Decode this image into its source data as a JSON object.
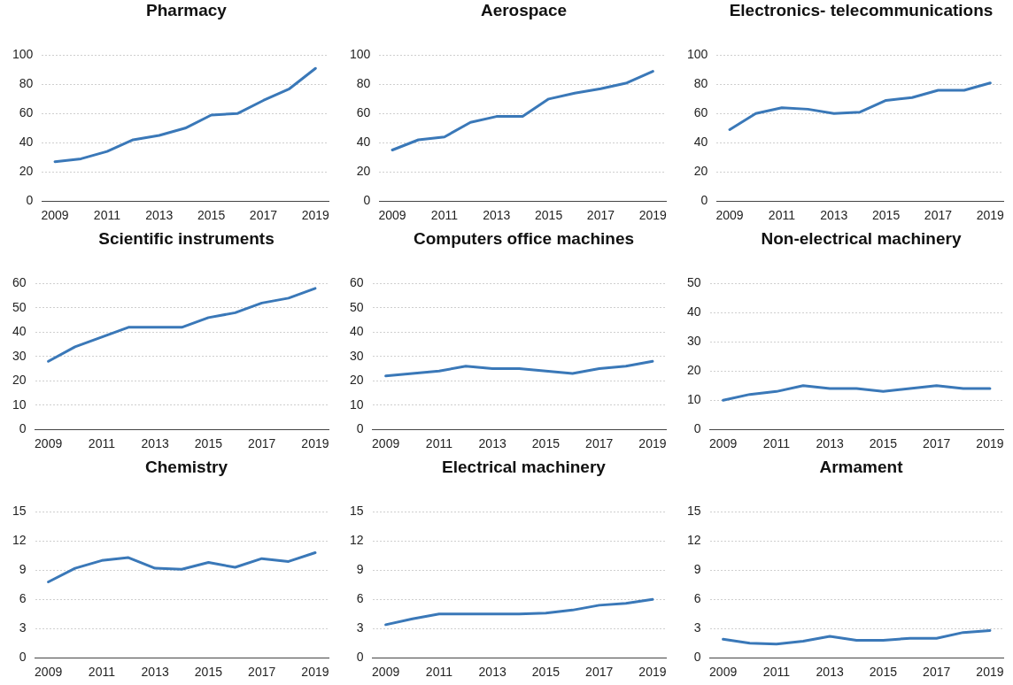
{
  "chart_data": [
    {
      "type": "line",
      "title": "Pharmacy",
      "categories": [
        "2009",
        null,
        "2011",
        null,
        "2013",
        null,
        "2015",
        null,
        "2017",
        null,
        "2019"
      ],
      "series": [
        {
          "color": "#3a78b8",
          "values": [
            27,
            29,
            34,
            42,
            45,
            50,
            59,
            60,
            69,
            77,
            91
          ]
        }
      ],
      "ylim": [
        0,
        100
      ],
      "yticks": [
        0,
        20,
        40,
        60,
        80,
        100
      ],
      "grid": "y"
    },
    {
      "type": "line",
      "title": "Aerospace",
      "categories": [
        "2009",
        null,
        "2011",
        null,
        "2013",
        null,
        "2015",
        null,
        "2017",
        null,
        "2019"
      ],
      "series": [
        {
          "color": "#3a78b8",
          "values": [
            35,
            42,
            44,
            54,
            58,
            58,
            70,
            74,
            77,
            81,
            89
          ]
        }
      ],
      "ylim": [
        0,
        100
      ],
      "yticks": [
        0,
        20,
        40,
        60,
        80,
        100
      ],
      "grid": "y"
    },
    {
      "type": "line",
      "title": "Electronics- telecommunications",
      "categories": [
        "2009",
        null,
        "2011",
        null,
        "2013",
        null,
        "2015",
        null,
        "2017",
        null,
        "2019"
      ],
      "series": [
        {
          "color": "#3a78b8",
          "values": [
            49,
            60,
            64,
            63,
            60,
            61,
            69,
            71,
            76,
            76,
            81
          ]
        }
      ],
      "ylim": [
        0,
        100
      ],
      "yticks": [
        0,
        20,
        40,
        60,
        80,
        100
      ],
      "grid": "y"
    },
    {
      "type": "line",
      "title": "Scientific instruments",
      "categories": [
        "2009",
        null,
        "2011",
        null,
        "2013",
        null,
        "2015",
        null,
        "2017",
        null,
        "2019"
      ],
      "series": [
        {
          "color": "#3a78b8",
          "values": [
            28,
            34,
            38,
            42,
            42,
            42,
            46,
            48,
            52,
            54,
            58
          ]
        }
      ],
      "ylim": [
        0,
        60
      ],
      "yticks": [
        0,
        10,
        20,
        30,
        40,
        50,
        60
      ],
      "grid": "y"
    },
    {
      "type": "line",
      "title": "Computers office machines",
      "categories": [
        "2009",
        null,
        "2011",
        null,
        "2013",
        null,
        "2015",
        null,
        "2017",
        null,
        "2019"
      ],
      "series": [
        {
          "color": "#3a78b8",
          "values": [
            22,
            23,
            24,
            26,
            25,
            25,
            24,
            23,
            25,
            26,
            28
          ]
        }
      ],
      "ylim": [
        0,
        60
      ],
      "yticks": [
        0,
        10,
        20,
        30,
        40,
        50,
        60
      ],
      "grid": "y"
    },
    {
      "type": "line",
      "title": "Non-electrical machinery",
      "categories": [
        "2009",
        null,
        "2011",
        null,
        "2013",
        null,
        "2015",
        null,
        "2017",
        null,
        "2019"
      ],
      "series": [
        {
          "color": "#3a78b8",
          "values": [
            10,
            12,
            13,
            15,
            14,
            14,
            13,
            14,
            15,
            14,
            14
          ]
        }
      ],
      "ylim": [
        0,
        50
      ],
      "yticks": [
        0,
        10,
        20,
        30,
        40,
        50
      ],
      "grid": "y"
    },
    {
      "type": "line",
      "title": "Chemistry",
      "categories": [
        "2009",
        null,
        "2011",
        null,
        "2013",
        null,
        "2015",
        null,
        "2017",
        null,
        "2019"
      ],
      "series": [
        {
          "color": "#3a78b8",
          "values": [
            7.8,
            9.2,
            10,
            10.3,
            9.2,
            9.1,
            9.8,
            9.3,
            10.2,
            9.9,
            10.8
          ]
        }
      ],
      "ylim": [
        0,
        15
      ],
      "yticks": [
        0,
        3,
        6,
        9,
        12,
        15
      ],
      "grid": "y"
    },
    {
      "type": "line",
      "title": "Electrical machinery",
      "categories": [
        "2009",
        null,
        "2011",
        null,
        "2013",
        null,
        "2015",
        null,
        "2017",
        null,
        "2019"
      ],
      "series": [
        {
          "color": "#3a78b8",
          "values": [
            3.4,
            4,
            4.5,
            4.5,
            4.5,
            4.5,
            4.6,
            4.9,
            5.4,
            5.6,
            6
          ]
        }
      ],
      "ylim": [
        0,
        15
      ],
      "yticks": [
        0,
        3,
        6,
        9,
        12,
        15
      ],
      "grid": "y"
    },
    {
      "type": "line",
      "title": "Armament",
      "categories": [
        "2009",
        null,
        "2011",
        null,
        "2013",
        null,
        "2015",
        null,
        "2017",
        null,
        "2019"
      ],
      "series": [
        {
          "color": "#3a78b8",
          "values": [
            1.9,
            1.5,
            1.4,
            1.7,
            2.2,
            1.8,
            1.8,
            2,
            2,
            2.6,
            2.8
          ]
        }
      ],
      "ylim": [
        0,
        15
      ],
      "yticks": [
        0,
        3,
        6,
        9,
        12,
        15
      ],
      "grid": "y"
    }
  ]
}
